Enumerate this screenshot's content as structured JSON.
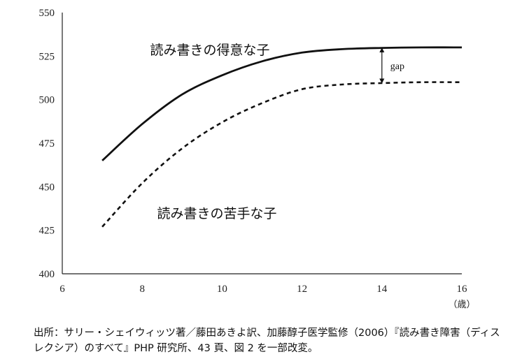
{
  "chart_data": {
    "type": "line",
    "x_unit": "（歳）",
    "xlim": [
      6,
      16
    ],
    "ylim": [
      400,
      550
    ],
    "x_ticks": [
      6,
      8,
      10,
      12,
      14,
      16
    ],
    "y_ticks": [
      400,
      425,
      450,
      475,
      500,
      525,
      550
    ],
    "grid": false,
    "series": [
      {
        "name": "読み書きの得意な子",
        "style": "solid",
        "color": "#111111",
        "x": [
          7,
          8,
          9,
          10,
          11,
          12,
          13,
          14,
          15,
          16
        ],
        "y": [
          465,
          486,
          503,
          514,
          522,
          527,
          529,
          529.7,
          530,
          530
        ]
      },
      {
        "name": "読み書きの苦手な子",
        "style": "dashed",
        "color": "#111111",
        "x": [
          7,
          8,
          9,
          10,
          11,
          12,
          13,
          14,
          15,
          16
        ],
        "y": [
          427,
          452,
          472,
          487,
          498,
          506,
          508.7,
          509.5,
          510,
          510
        ]
      }
    ],
    "annotations": [
      {
        "text": "gap",
        "x": 14,
        "y_from": 509.5,
        "y_to": 529.7
      }
    ]
  },
  "source_note": "出所：サリー・シェイウィッツ著／藤田あきよ訳、加藤醇子医学監修（2006）『読み書き障害（ディスレクシア）のすべて』PHP 研究所、43 頁、図 2 を一部改変。"
}
